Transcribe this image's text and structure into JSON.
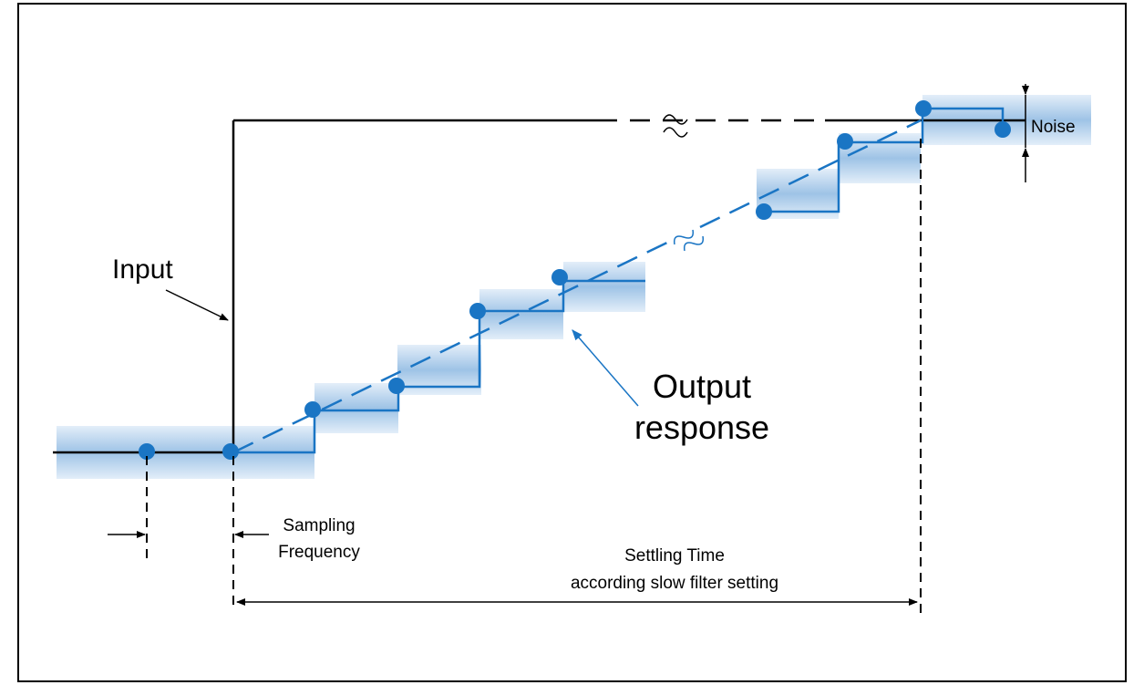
{
  "labels": {
    "input": "Input",
    "output_line1": "Output",
    "output_line2": "response",
    "sampling_line1": "Sampling",
    "sampling_line2": "Frequency",
    "settling_line1": "Settling Time",
    "settling_line2": "according slow filter setting",
    "noise": "Noise"
  },
  "colors": {
    "signal_blue": "#1a75c4",
    "band_blue": "#9ec3e6",
    "input_line": "#000000",
    "frame": "#000000"
  }
}
